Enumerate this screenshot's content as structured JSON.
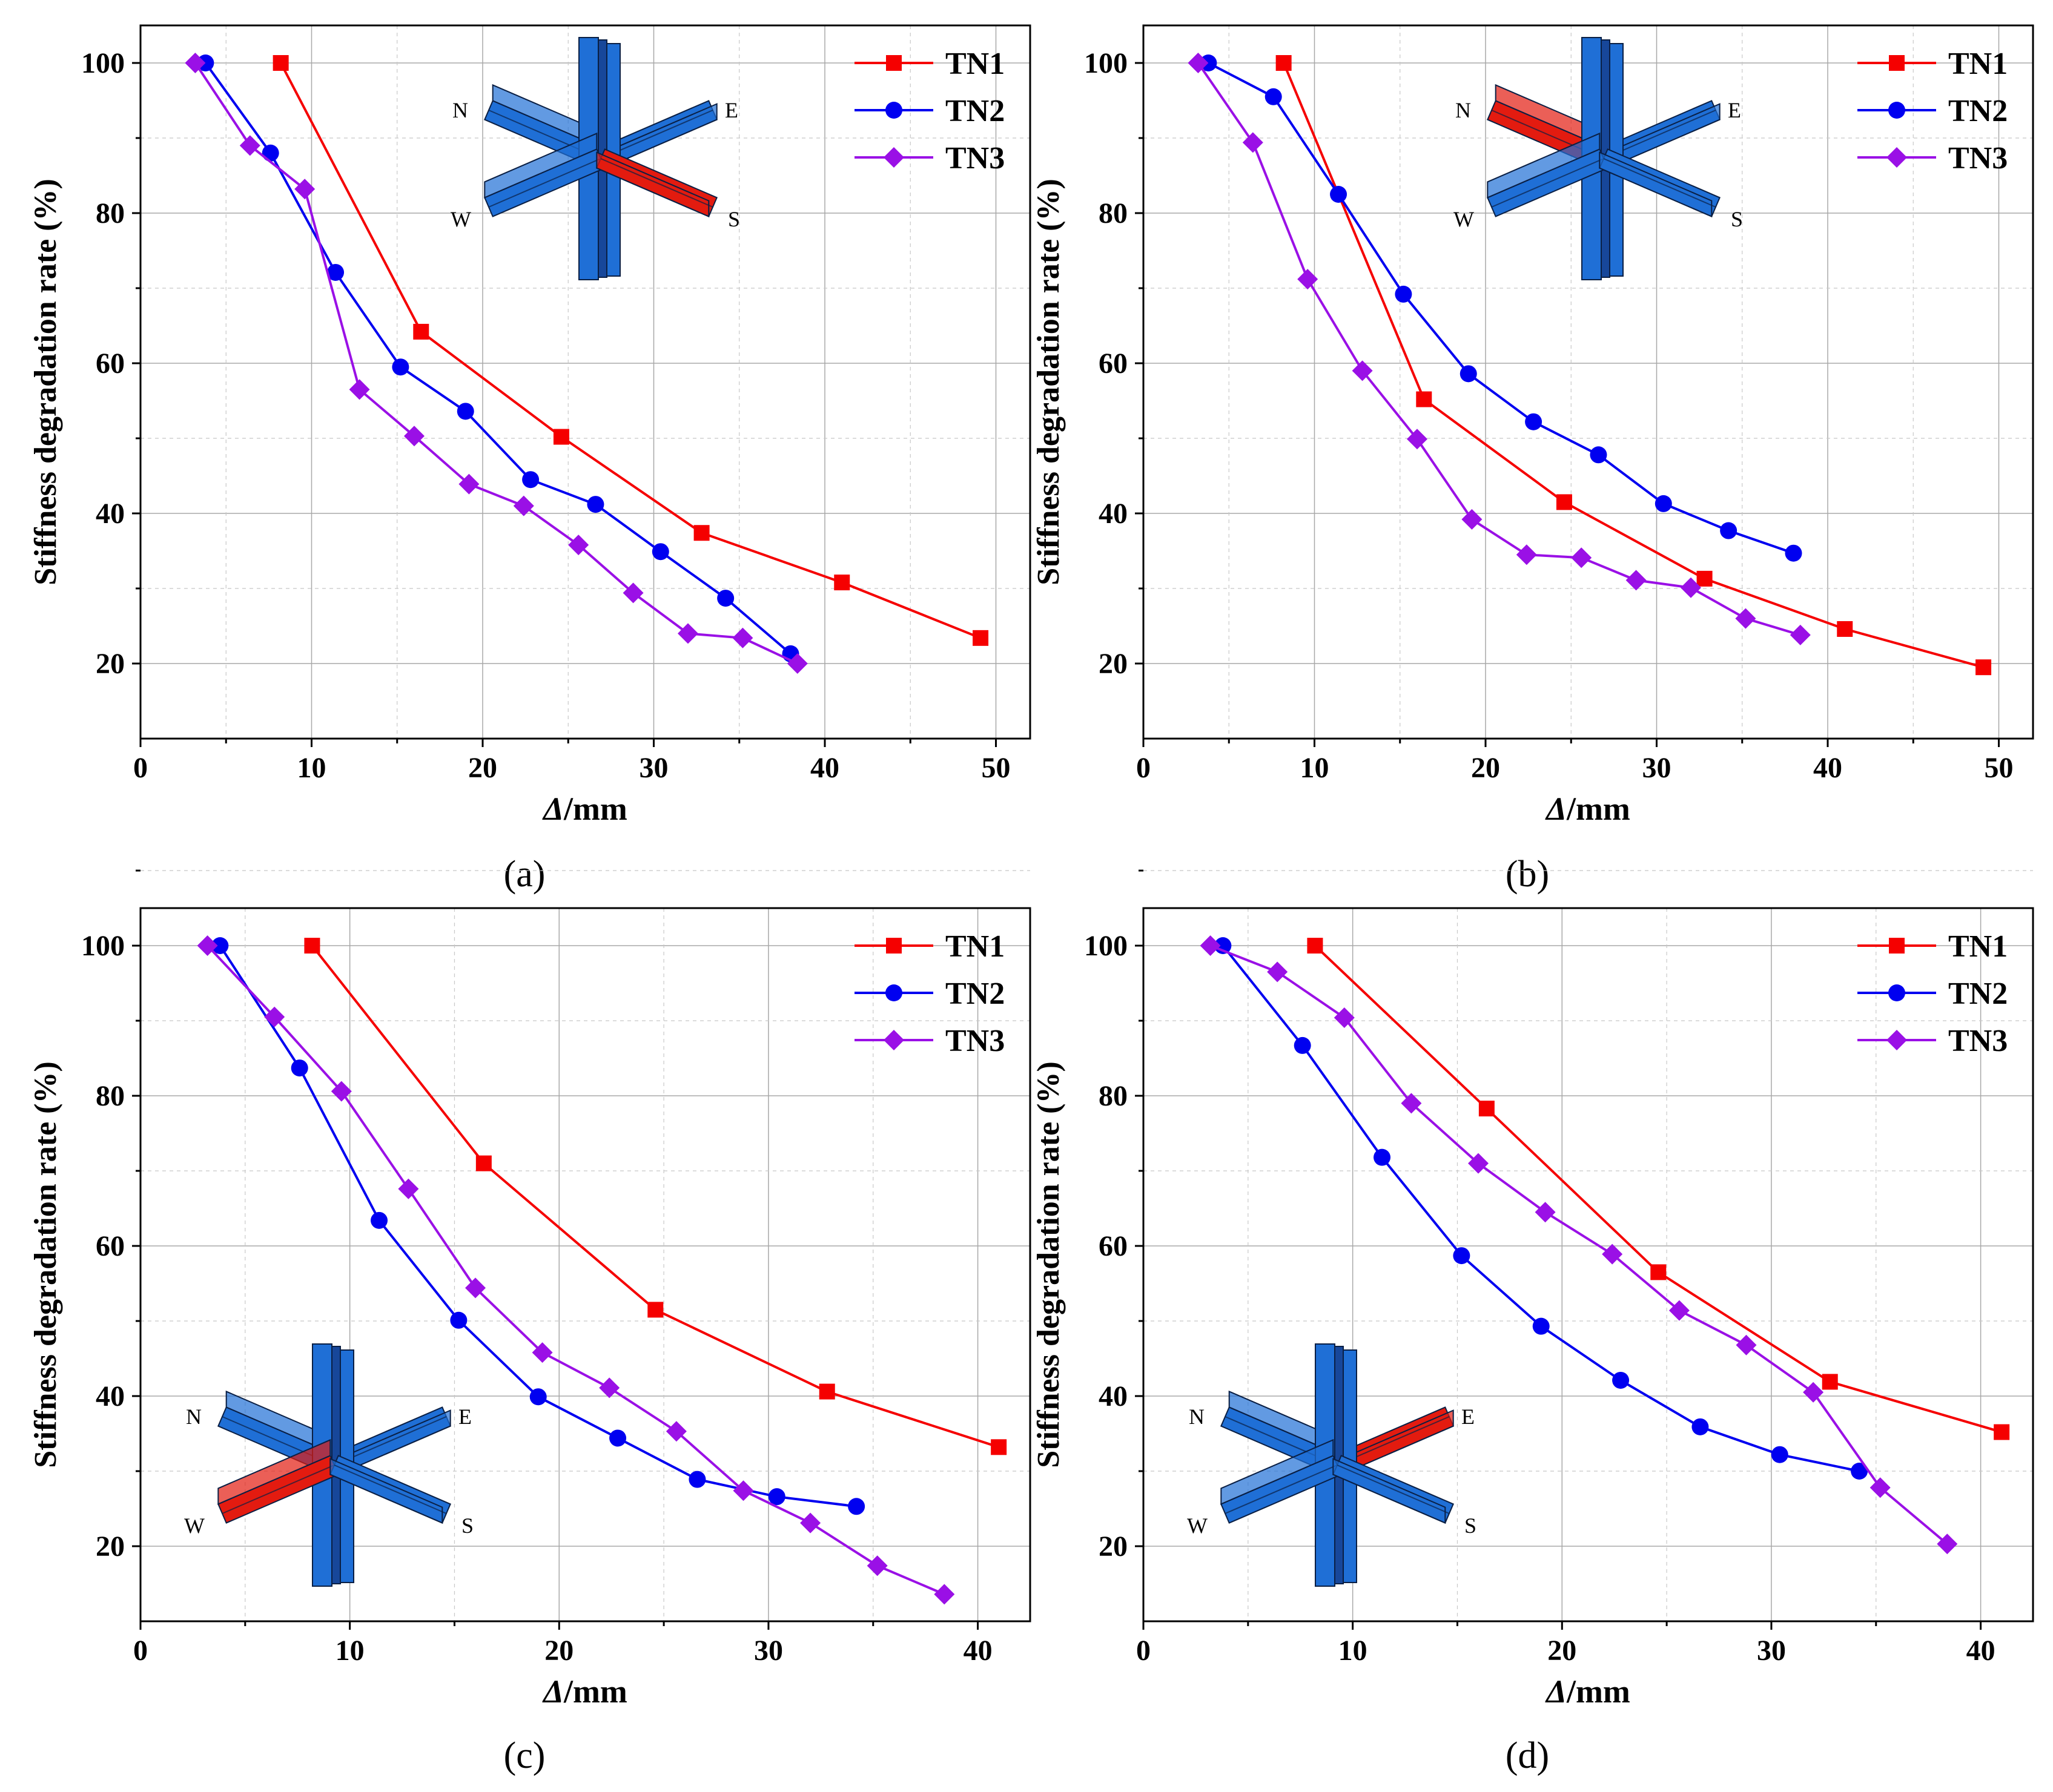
{
  "colors": {
    "TN1": "#f50000",
    "TN2": "#0000f0",
    "TN3": "#9a10e6",
    "beam_blue": "#1f6fd6",
    "beam_red": "#e31b10"
  },
  "chart_data": [
    {
      "type": "line",
      "panel_label": "(a)",
      "xlabel": "Δ/mm",
      "ylabel": "Stiffness degradation rate (%)",
      "xlim": [
        0,
        52
      ],
      "ylim": [
        10,
        105
      ],
      "xticks": [
        0,
        10,
        20,
        30,
        40,
        50
      ],
      "yticks": [
        20,
        40,
        60,
        80,
        100
      ],
      "legend": "top-right",
      "inset": {
        "corner": "top",
        "highlight": "S",
        "labels": [
          "N",
          "E",
          "W",
          "S"
        ]
      },
      "series": [
        {
          "name": "TN1",
          "marker": "square",
          "x": [
            8.2,
            16.4,
            24.6,
            32.8,
            41.0,
            49.1
          ],
          "y": [
            100,
            64.2,
            50.2,
            37.4,
            30.8,
            23.4
          ]
        },
        {
          "name": "TN2",
          "marker": "circle",
          "x": [
            3.8,
            7.6,
            11.4,
            15.2,
            19.0,
            22.8,
            26.6,
            30.4,
            34.2,
            38.0
          ],
          "y": [
            100,
            88.0,
            72.1,
            59.5,
            53.6,
            44.5,
            41.2,
            34.9,
            28.7,
            21.3
          ]
        },
        {
          "name": "TN3",
          "marker": "diamond",
          "x": [
            3.2,
            6.4,
            9.6,
            12.8,
            16.0,
            19.2,
            22.4,
            25.6,
            28.8,
            32.0,
            35.2,
            38.4
          ],
          "y": [
            100,
            89.0,
            83.2,
            56.5,
            50.3,
            43.9,
            41.0,
            35.8,
            29.4,
            24.0,
            23.4,
            20.0
          ]
        }
      ]
    },
    {
      "type": "line",
      "panel_label": "(b)",
      "xlabel": "Δ/mm",
      "ylabel": "Stiffness degradation rate (%)",
      "xlim": [
        0,
        52
      ],
      "ylim": [
        10,
        105
      ],
      "xticks": [
        0,
        10,
        20,
        30,
        40,
        50
      ],
      "yticks": [
        20,
        40,
        60,
        80,
        100
      ],
      "legend": "top-right",
      "inset": {
        "corner": "top",
        "highlight": "N",
        "labels": [
          "N",
          "E",
          "W",
          "S"
        ]
      },
      "series": [
        {
          "name": "TN1",
          "marker": "square",
          "x": [
            8.2,
            16.4,
            24.6,
            32.8,
            41.0,
            49.1
          ],
          "y": [
            100,
            55.2,
            41.5,
            31.3,
            24.6,
            19.5
          ]
        },
        {
          "name": "TN2",
          "marker": "circle",
          "x": [
            3.8,
            7.6,
            11.4,
            15.2,
            19.0,
            22.8,
            26.6,
            30.4,
            34.2,
            38.0
          ],
          "y": [
            100,
            95.5,
            82.5,
            69.2,
            58.6,
            52.2,
            47.8,
            41.3,
            37.7,
            34.7
          ]
        },
        {
          "name": "TN3",
          "marker": "diamond",
          "x": [
            3.2,
            6.4,
            9.6,
            12.8,
            16.0,
            19.2,
            22.4,
            25.6,
            28.8,
            32.0,
            35.2,
            38.4
          ],
          "y": [
            100,
            89.4,
            71.2,
            59.0,
            49.9,
            39.2,
            34.5,
            34.1,
            31.1,
            30.1,
            26.0,
            23.8
          ]
        }
      ]
    },
    {
      "type": "line",
      "panel_label": "(c)",
      "xlabel": "Δ/mm",
      "ylabel": "Stiffness degradation rate (%)",
      "xlim": [
        0,
        42.5
      ],
      "ylim": [
        10,
        105
      ],
      "xticks": [
        0,
        10,
        20,
        30,
        40
      ],
      "yticks": [
        20,
        40,
        60,
        80,
        100
      ],
      "legend": "top-right",
      "inset": {
        "corner": "bottom",
        "highlight": "W",
        "labels": [
          "N",
          "E",
          "W",
          "S"
        ]
      },
      "series": [
        {
          "name": "TN1",
          "marker": "square",
          "x": [
            8.2,
            16.4,
            24.6,
            32.8,
            41.0
          ],
          "y": [
            100,
            71.0,
            51.5,
            40.6,
            33.2
          ]
        },
        {
          "name": "TN2",
          "marker": "circle",
          "x": [
            3.8,
            7.6,
            11.4,
            15.2,
            19.0,
            22.8,
            26.6,
            30.4,
            34.2
          ],
          "y": [
            100,
            83.7,
            63.4,
            50.1,
            39.9,
            34.4,
            28.9,
            26.6,
            25.3
          ]
        },
        {
          "name": "TN3",
          "marker": "diamond",
          "x": [
            3.2,
            6.4,
            9.6,
            12.8,
            16.0,
            19.2,
            22.4,
            25.6,
            28.8,
            32.0,
            35.2,
            38.4
          ],
          "y": [
            100,
            90.5,
            80.6,
            67.6,
            54.4,
            45.8,
            41.1,
            35.3,
            27.4,
            23.1,
            17.4,
            13.6
          ]
        }
      ]
    },
    {
      "type": "line",
      "panel_label": "(d)",
      "xlabel": "Δ/mm",
      "ylabel": "Stiffness degradation rate (%)",
      "xlim": [
        0,
        42.5
      ],
      "ylim": [
        10,
        105
      ],
      "xticks": [
        0,
        10,
        20,
        30,
        40
      ],
      "yticks": [
        20,
        40,
        60,
        80,
        100
      ],
      "legend": "top-right",
      "inset": {
        "corner": "bottom",
        "highlight": "E",
        "labels": [
          "N",
          "E",
          "W",
          "S"
        ]
      },
      "series": [
        {
          "name": "TN1",
          "marker": "square",
          "x": [
            8.2,
            16.4,
            24.6,
            32.8,
            41.0
          ],
          "y": [
            100,
            78.3,
            56.5,
            41.9,
            35.2
          ]
        },
        {
          "name": "TN2",
          "marker": "circle",
          "x": [
            3.8,
            7.6,
            11.4,
            15.2,
            19.0,
            22.8,
            26.6,
            30.4,
            34.2
          ],
          "y": [
            100,
            86.7,
            71.8,
            58.7,
            49.3,
            42.1,
            35.9,
            32.2,
            30.0
          ]
        },
        {
          "name": "TN3",
          "marker": "diamond",
          "x": [
            3.2,
            6.4,
            9.6,
            12.8,
            16.0,
            19.2,
            22.4,
            25.6,
            28.8,
            32.0,
            35.2,
            38.4
          ],
          "y": [
            100,
            96.5,
            90.4,
            79.0,
            71.0,
            64.5,
            58.9,
            51.4,
            46.8,
            40.5,
            27.8,
            20.3
          ]
        }
      ]
    }
  ]
}
